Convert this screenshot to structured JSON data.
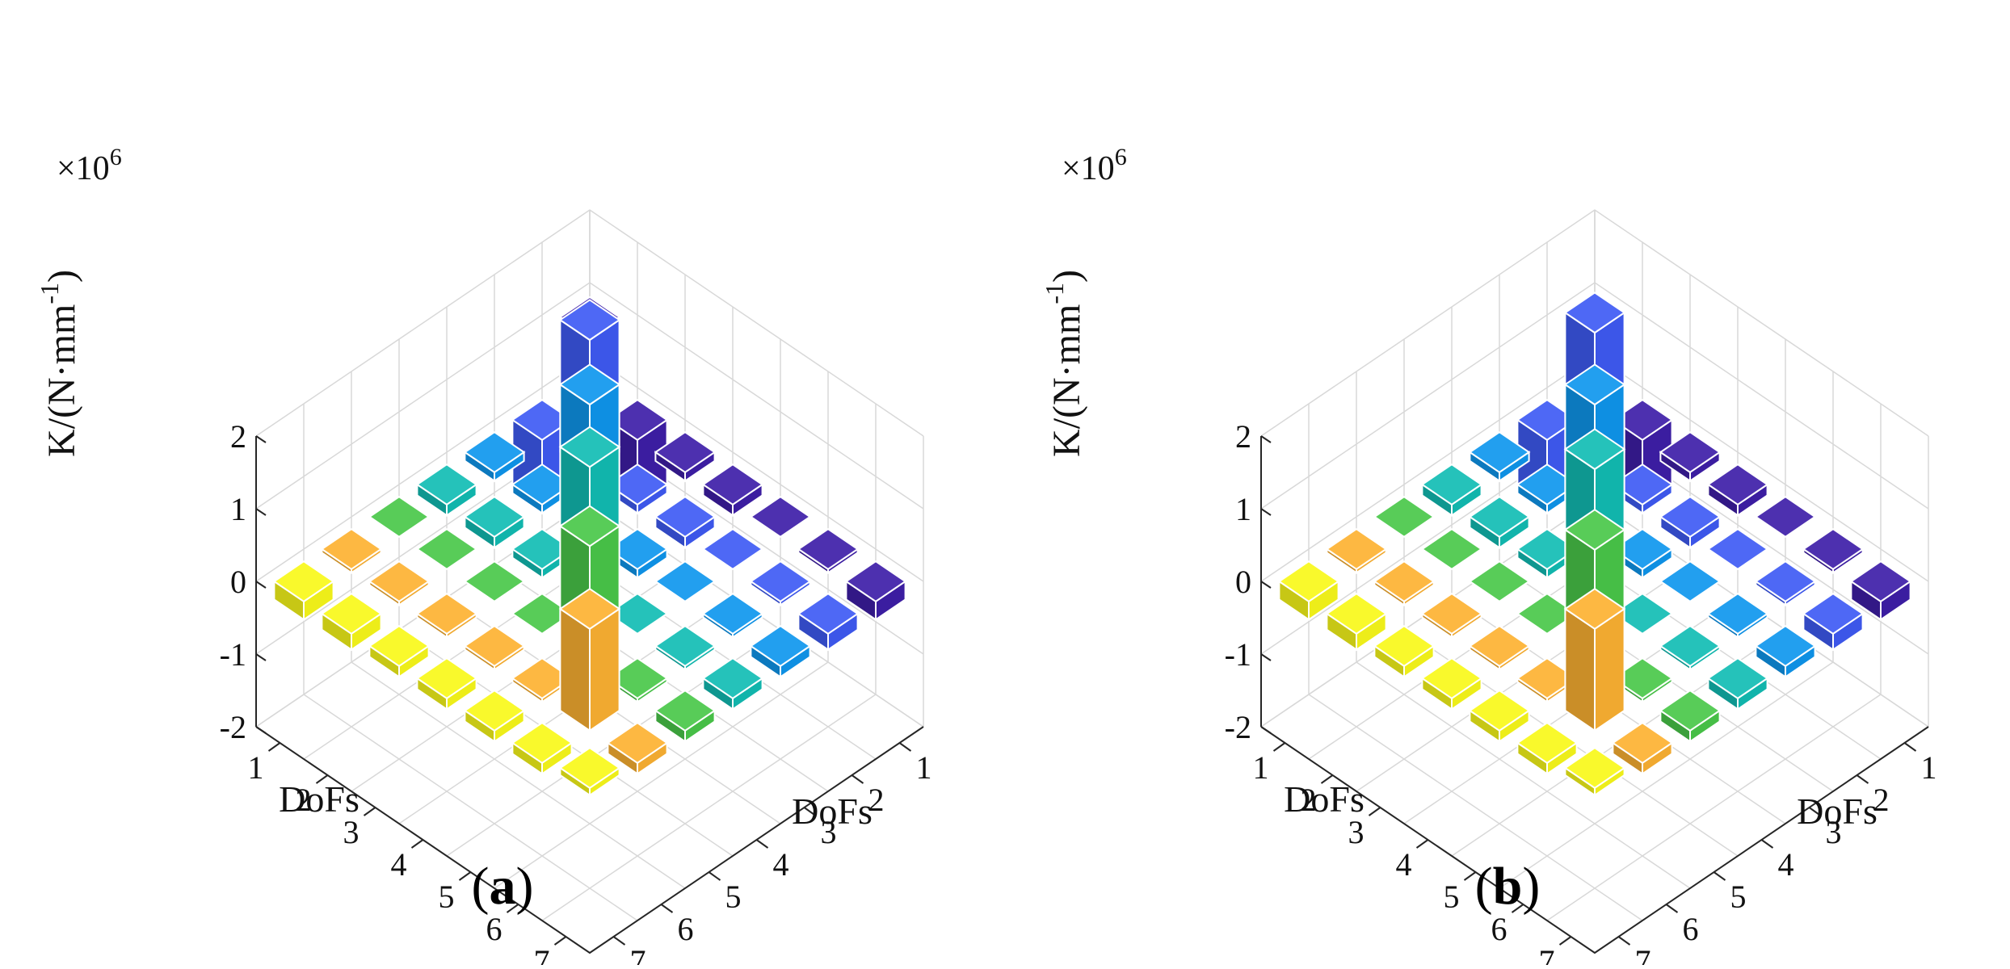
{
  "figure": {
    "captions": [
      "a",
      "b"
    ]
  },
  "axis_common": {
    "zlabel": "K/(N·mm",
    "zlabel_sup": "-1",
    "zlabel_close": ")",
    "exponent_base": "×10",
    "exponent_power": "6",
    "xlabel": "DoFs",
    "ylabel": "DoFs",
    "row_ticks": [
      "1",
      "2",
      "3",
      "4",
      "5",
      "6",
      "7"
    ],
    "col_ticks": [
      "1",
      "2",
      "3",
      "4",
      "5",
      "6",
      "7"
    ],
    "z_ticks": [
      "-2",
      "-1",
      "0",
      "1",
      "2"
    ]
  },
  "colors": [
    "#3e1ea8",
    "#3f5bf4",
    "#0f97ee",
    "#12bdb4",
    "#4ac84a",
    "#fdb232",
    "#f9f91a"
  ],
  "chart_data": [
    {
      "type": "bar3",
      "panel": "a",
      "title": "",
      "xlabel": "DoFs",
      "ylabel": "DoFs",
      "zlabel": "K/(N·mm-1)",
      "zscale": "×10^6",
      "zlim": [
        -2,
        2
      ],
      "categories": [
        "1",
        "2",
        "3",
        "4",
        "5",
        "6",
        "7"
      ],
      "series": [
        {
          "name": "1",
          "values": [
            0.97,
            -1.0,
            -0.12,
            -0.15,
            0.0,
            -0.05,
            -0.25
          ]
        },
        {
          "name": "2",
          "values": [
            -1.0,
            1.82,
            -0.12,
            -0.15,
            0.0,
            -0.05,
            -0.22
          ]
        },
        {
          "name": "3",
          "values": [
            -0.12,
            -0.12,
            1.82,
            -0.12,
            0.0,
            -0.05,
            -0.15
          ]
        },
        {
          "name": "4",
          "values": [
            -0.15,
            -0.15,
            -0.12,
            1.85,
            0.0,
            -0.05,
            -0.15
          ]
        },
        {
          "name": "5",
          "values": [
            0.0,
            0.0,
            0.0,
            0.0,
            1.65,
            -0.05,
            -0.15
          ]
        },
        {
          "name": "6",
          "values": [
            -0.05,
            -0.05,
            -0.05,
            -0.05,
            -0.05,
            1.4,
            -0.15
          ]
        },
        {
          "name": "7",
          "values": [
            -0.25,
            -0.22,
            -0.15,
            -0.15,
            -0.15,
            -0.15,
            0.1
          ]
        }
      ]
    },
    {
      "type": "bar3",
      "panel": "b",
      "title": "",
      "xlabel": "DoFs",
      "ylabel": "DoFs",
      "zlabel": "K/(N·mm-1)",
      "zscale": "×10^6",
      "zlim": [
        -2,
        2
      ],
      "categories": [
        "1",
        "2",
        "3",
        "4",
        "5",
        "6",
        "7"
      ],
      "series": [
        {
          "name": "1",
          "values": [
            0.97,
            -1.0,
            -0.12,
            -0.15,
            0.0,
            -0.05,
            -0.25
          ]
        },
        {
          "name": "2",
          "values": [
            -1.0,
            1.92,
            -0.12,
            -0.15,
            0.0,
            -0.05,
            -0.22
          ]
        },
        {
          "name": "3",
          "values": [
            -0.12,
            -0.12,
            1.82,
            -0.12,
            0.0,
            -0.05,
            -0.15
          ]
        },
        {
          "name": "4",
          "values": [
            -0.15,
            -0.15,
            -0.12,
            1.82,
            0.0,
            -0.05,
            -0.15
          ]
        },
        {
          "name": "5",
          "values": [
            0.0,
            0.0,
            0.0,
            0.0,
            1.6,
            -0.05,
            -0.15
          ]
        },
        {
          "name": "6",
          "values": [
            -0.05,
            -0.05,
            -0.05,
            -0.05,
            -0.05,
            1.4,
            -0.15
          ]
        },
        {
          "name": "7",
          "values": [
            -0.25,
            -0.22,
            -0.15,
            -0.15,
            -0.15,
            -0.15,
            0.1
          ]
        }
      ]
    }
  ]
}
